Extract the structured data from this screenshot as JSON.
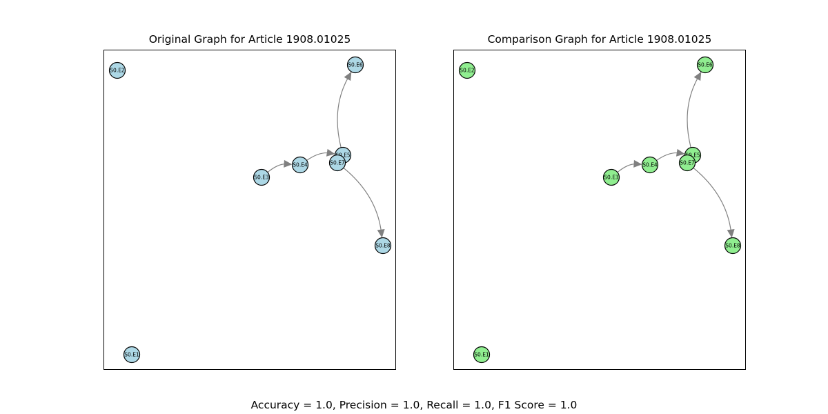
{
  "panels": [
    {
      "title": "Original Graph for Article 1908.01025",
      "node_color": "#add8e6",
      "nodes": [
        "S0.E1",
        "S0.E2",
        "S0.E3",
        "S0.E4",
        "S0.E5",
        "S0.E6",
        "S0.E7",
        "S0.E8"
      ],
      "edges": [
        [
          "S0.E3",
          "S0.E4"
        ],
        [
          "S0.E4",
          "S0.E5"
        ],
        [
          "S0.E5",
          "S0.E6"
        ],
        [
          "S0.E7",
          "S0.E8"
        ]
      ]
    },
    {
      "title": "Comparison Graph for Article 1908.01025",
      "node_color": "#90ee90",
      "nodes": [
        "S0.E1",
        "S0.E2",
        "S0.E3",
        "S0.E4",
        "S0.E5",
        "S0.E6",
        "S0.E7",
        "S0.E8"
      ],
      "edges": [
        [
          "S0.E3",
          "S0.E4"
        ],
        [
          "S0.E4",
          "S0.E5"
        ],
        [
          "S0.E5",
          "S0.E6"
        ],
        [
          "S0.E7",
          "S0.E8"
        ]
      ]
    }
  ],
  "edge_color": "#808080",
  "footer": "Accuracy = 1.0, Precision = 1.0, Recall = 1.0, F1 Score = 1.0"
}
